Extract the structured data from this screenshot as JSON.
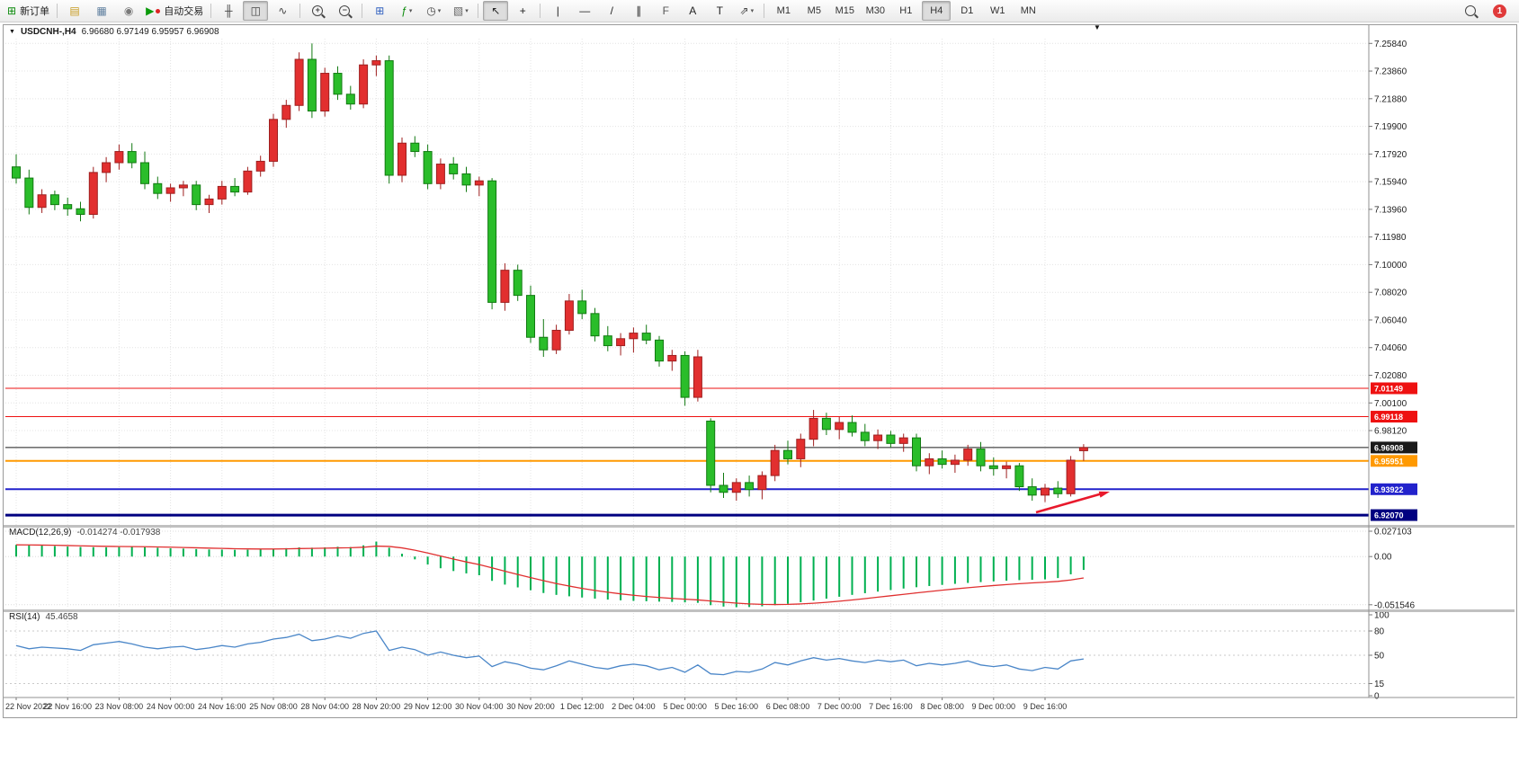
{
  "toolbar": {
    "notification_count": "1",
    "active_timeframe": "H4",
    "timeframes": [
      "M1",
      "M5",
      "M15",
      "M30",
      "H1",
      "H4",
      "D1",
      "W1",
      "MN"
    ],
    "groups": [
      {
        "buttons": [
          {
            "name": "new-order",
            "glyph": "⊞",
            "color": "#0a8a0a",
            "label": "新订单"
          }
        ]
      },
      {
        "buttons": [
          {
            "name": "metaeditor",
            "glyph": "▤",
            "color": "#c79a1e"
          },
          {
            "name": "print",
            "glyph": "▦",
            "color": "#5f7f9f"
          },
          {
            "name": "navigator",
            "glyph": "◉",
            "color": "#7a7a7a"
          },
          {
            "name": "auto-trading",
            "glyph": "▶",
            "color": "#0a9a0a",
            "label": "自动交易",
            "dot": "#dd2222"
          }
        ]
      },
      {
        "buttons": [
          {
            "name": "ohlc-bars",
            "glyph": "╫",
            "color": "#444444"
          },
          {
            "name": "candlesticks",
            "glyph": "◫",
            "color": "#444444",
            "active": true
          },
          {
            "name": "line-chart",
            "glyph": "∿",
            "color": "#444444"
          }
        ]
      },
      {
        "buttons": [
          {
            "name": "zoom-in",
            "icon": "mag",
            "sign": "+"
          },
          {
            "name": "zoom-out",
            "icon": "mag",
            "sign": "−"
          }
        ]
      },
      {
        "buttons": [
          {
            "name": "tile-windows",
            "glyph": "⊞",
            "color": "#2f5fbf"
          },
          {
            "name": "indicators",
            "glyph": "ƒ",
            "color": "#0a8a0a",
            "dropdown": true
          },
          {
            "name": "periods",
            "glyph": "◷",
            "color": "#444444",
            "dropdown": true
          },
          {
            "name": "templates",
            "glyph": "▧",
            "color": "#666666",
            "dropdown": true
          }
        ]
      },
      {
        "buttons": [
          {
            "name": "cursor",
            "glyph": "↖",
            "color": "#222222",
            "active": true
          },
          {
            "name": "crosshair",
            "glyph": "+",
            "color": "#222222"
          }
        ]
      },
      {
        "buttons": [
          {
            "name": "vertical-line",
            "glyph": "|",
            "color": "#222222"
          },
          {
            "name": "horizontal-line",
            "glyph": "—",
            "color": "#222222"
          },
          {
            "name": "trendline",
            "glyph": "/",
            "color": "#222222"
          },
          {
            "name": "equidistant-channel",
            "glyph": "∥",
            "color": "#222222"
          },
          {
            "name": "fibonacci-retracement",
            "glyph": "F",
            "color": "#555555"
          },
          {
            "name": "text",
            "glyph": "A",
            "color": "#222222"
          },
          {
            "name": "text-label",
            "glyph": "T",
            "color": "#222222"
          },
          {
            "name": "arrows",
            "glyph": "⇗",
            "color": "#444444",
            "dropdown": true
          }
        ]
      }
    ]
  },
  "icons": {
    "caret_down": "▼",
    "dropdown": "▾"
  },
  "chart_meta": {
    "symbol": "USDCNH-,H4",
    "ohlc": "6.96680 6.97149 6.95957 6.96908"
  },
  "indicators": {
    "macd": {
      "name": "MACD(12,26,9)",
      "values_text": "-0.014274 -0.017938",
      "axis_labels": [
        "0.027103",
        "0.00",
        "-0.051546"
      ]
    },
    "rsi": {
      "name": "RSI(14)",
      "value_text": "45.4658",
      "axis_labels": [
        "100",
        "80",
        "50",
        "15",
        "0"
      ],
      "levels": [
        80,
        50,
        15
      ]
    }
  },
  "chart_data": {
    "type": "candlestick",
    "symbol": "USDCNH",
    "timeframe": "H4",
    "price_axis_ticks": [
      "7.25840",
      "7.23860",
      "7.21880",
      "7.19900",
      "7.17920",
      "7.15940",
      "7.13960",
      "7.11980",
      "7.10000",
      "7.08020",
      "7.06040",
      "7.04060",
      "7.02080",
      "7.00100",
      "6.98120"
    ],
    "time_labels": [
      "22 Nov 2022",
      "22 Nov 16:00",
      "23 Nov 08:00",
      "24 Nov 00:00",
      "24 Nov 16:00",
      "25 Nov 08:00",
      "28 Nov 04:00",
      "28 Nov 20:00",
      "29 Nov 12:00",
      "30 Nov 04:00",
      "30 Nov 20:00",
      "1 Dec 12:00",
      "2 Dec 04:00",
      "5 Dec 00:00",
      "5 Dec 16:00",
      "6 Dec 08:00",
      "7 Dec 00:00",
      "7 Dec 16:00",
      "8 Dec 08:00",
      "9 Dec 00:00",
      "9 Dec 16:00"
    ],
    "horizontal_lines": [
      {
        "price": 7.01149,
        "label": "7.01149",
        "color": "#ee1111",
        "width": 1
      },
      {
        "price": 6.99118,
        "label": "6.99118",
        "color": "#ee1111",
        "width": 1
      },
      {
        "price": 6.96908,
        "label": "6.96908",
        "color": "#1a1a1a",
        "width": 1
      },
      {
        "price": 6.95951,
        "label": "6.95951",
        "color": "#ff9900",
        "width": 2
      },
      {
        "price": 6.93922,
        "label": "6.93922",
        "color": "#2222cc",
        "width": 2
      },
      {
        "price": 6.9207,
        "label": "6.92070",
        "color": "#000080",
        "width": 3
      }
    ],
    "candles": [
      [
        7.17,
        7.179,
        7.158,
        7.162
      ],
      [
        7.162,
        7.168,
        7.136,
        7.141
      ],
      [
        7.141,
        7.154,
        7.137,
        7.15
      ],
      [
        7.15,
        7.153,
        7.139,
        7.143
      ],
      [
        7.143,
        7.148,
        7.135,
        7.14
      ],
      [
        7.14,
        7.145,
        7.131,
        7.136
      ],
      [
        7.136,
        7.17,
        7.133,
        7.166
      ],
      [
        7.166,
        7.177,
        7.159,
        7.173
      ],
      [
        7.173,
        7.186,
        7.168,
        7.181
      ],
      [
        7.181,
        7.187,
        7.169,
        7.173
      ],
      [
        7.173,
        7.181,
        7.154,
        7.158
      ],
      [
        7.158,
        7.163,
        7.147,
        7.151
      ],
      [
        7.151,
        7.158,
        7.145,
        7.155
      ],
      [
        7.155,
        7.16,
        7.149,
        7.157
      ],
      [
        7.157,
        7.16,
        7.139,
        7.143
      ],
      [
        7.143,
        7.15,
        7.137,
        7.147
      ],
      [
        7.147,
        7.16,
        7.143,
        7.156
      ],
      [
        7.156,
        7.162,
        7.149,
        7.152
      ],
      [
        7.152,
        7.17,
        7.15,
        7.167
      ],
      [
        7.167,
        7.178,
        7.163,
        7.174
      ],
      [
        7.174,
        7.208,
        7.17,
        7.204
      ],
      [
        7.204,
        7.218,
        7.198,
        7.214
      ],
      [
        7.214,
        7.252,
        7.21,
        7.247
      ],
      [
        7.247,
        7.2584,
        7.205,
        7.21
      ],
      [
        7.21,
        7.241,
        7.206,
        7.237
      ],
      [
        7.237,
        7.242,
        7.218,
        7.222
      ],
      [
        7.222,
        7.228,
        7.211,
        7.215
      ],
      [
        7.215,
        7.247,
        7.212,
        7.243
      ],
      [
        7.243,
        7.2497,
        7.235,
        7.246
      ],
      [
        7.246,
        7.2497,
        7.158,
        7.164
      ],
      [
        7.164,
        7.191,
        7.159,
        7.187
      ],
      [
        7.187,
        7.192,
        7.177,
        7.181
      ],
      [
        7.181,
        7.186,
        7.154,
        7.158
      ],
      [
        7.158,
        7.176,
        7.154,
        7.172
      ],
      [
        7.172,
        7.177,
        7.161,
        7.165
      ],
      [
        7.165,
        7.17,
        7.152,
        7.157
      ],
      [
        7.157,
        7.163,
        7.149,
        7.16
      ],
      [
        7.16,
        7.162,
        7.068,
        7.073
      ],
      [
        7.073,
        7.101,
        7.067,
        7.096
      ],
      [
        7.096,
        7.1,
        7.074,
        7.078
      ],
      [
        7.078,
        7.085,
        7.044,
        7.048
      ],
      [
        7.048,
        7.061,
        7.034,
        7.039
      ],
      [
        7.039,
        7.057,
        7.036,
        7.053
      ],
      [
        7.053,
        7.079,
        7.05,
        7.074
      ],
      [
        7.074,
        7.082,
        7.061,
        7.065
      ],
      [
        7.065,
        7.069,
        7.045,
        7.049
      ],
      [
        7.049,
        7.056,
        7.038,
        7.042
      ],
      [
        7.042,
        7.051,
        7.035,
        7.047
      ],
      [
        7.047,
        7.055,
        7.037,
        7.051
      ],
      [
        7.051,
        7.057,
        7.043,
        7.046
      ],
      [
        7.046,
        7.049,
        7.027,
        7.031
      ],
      [
        7.031,
        7.039,
        7.024,
        7.035
      ],
      [
        7.035,
        7.038,
        6.999,
        7.005
      ],
      [
        7.005,
        7.039,
        7.002,
        7.034
      ],
      [
        6.988,
        6.99,
        6.937,
        6.942
      ],
      [
        6.942,
        6.951,
        6.933,
        6.937
      ],
      [
        6.937,
        6.947,
        6.931,
        6.944
      ],
      [
        6.944,
        6.949,
        6.934,
        6.939
      ],
      [
        6.939,
        6.952,
        6.932,
        6.949
      ],
      [
        6.949,
        6.971,
        6.945,
        6.967
      ],
      [
        6.967,
        6.974,
        6.957,
        6.961
      ],
      [
        6.961,
        6.979,
        6.955,
        6.975
      ],
      [
        6.975,
        6.996,
        6.97,
        6.99
      ],
      [
        6.99,
        6.994,
        6.978,
        6.982
      ],
      [
        6.982,
        6.991,
        6.975,
        6.987
      ],
      [
        6.987,
        6.992,
        6.977,
        6.98
      ],
      [
        6.98,
        6.986,
        6.97,
        6.974
      ],
      [
        6.974,
        6.982,
        6.968,
        6.978
      ],
      [
        6.978,
        6.981,
        6.969,
        6.972
      ],
      [
        6.972,
        6.979,
        6.966,
        6.976
      ],
      [
        6.976,
        6.979,
        6.952,
        6.956
      ],
      [
        6.956,
        6.965,
        6.95,
        6.961
      ],
      [
        6.961,
        6.967,
        6.954,
        6.957
      ],
      [
        6.957,
        6.964,
        6.951,
        6.96
      ],
      [
        6.96,
        6.971,
        6.956,
        6.968
      ],
      [
        6.968,
        6.973,
        6.952,
        6.956
      ],
      [
        6.956,
        6.962,
        6.949,
        6.954
      ],
      [
        6.954,
        6.959,
        6.947,
        6.956
      ],
      [
        6.956,
        6.958,
        6.938,
        6.941
      ],
      [
        6.941,
        6.947,
        6.931,
        6.935
      ],
      [
        6.935,
        6.943,
        6.93,
        6.94
      ],
      [
        6.94,
        6.945,
        6.933,
        6.936
      ],
      [
        6.936,
        6.963,
        6.934,
        6.96
      ],
      [
        6.9668,
        6.97149,
        6.95957,
        6.96908
      ]
    ],
    "macd_histogram": [
      0.0125,
      0.0121,
      0.0117,
      0.0112,
      0.0107,
      0.0103,
      0.01,
      0.0099,
      0.0101,
      0.0103,
      0.01,
      0.0094,
      0.0089,
      0.0085,
      0.008,
      0.0076,
      0.0074,
      0.0072,
      0.0073,
      0.0075,
      0.0082,
      0.009,
      0.0098,
      0.0095,
      0.0098,
      0.0105,
      0.0102,
      0.012,
      0.016,
      0.0095,
      0.003,
      -0.003,
      -0.0085,
      -0.0125,
      -0.0155,
      -0.018,
      -0.02,
      -0.026,
      -0.03,
      -0.033,
      -0.036,
      -0.039,
      -0.041,
      -0.0425,
      -0.0438,
      -0.045,
      -0.046,
      -0.0468,
      -0.0474,
      -0.0478,
      -0.0482,
      -0.0485,
      -0.049,
      -0.0495,
      -0.052,
      -0.0535,
      -0.0542,
      -0.054,
      -0.0532,
      -0.052,
      -0.0505,
      -0.0488,
      -0.047,
      -0.045,
      -0.043,
      -0.041,
      -0.0392,
      -0.0375,
      -0.0358,
      -0.0342,
      -0.0328,
      -0.0315,
      -0.0303,
      -0.0292,
      -0.0282,
      -0.0273,
      -0.0265,
      -0.0258,
      -0.0252,
      -0.0248,
      -0.0244,
      -0.023,
      -0.019,
      -0.0143
    ],
    "rsi_values": [
      62,
      58,
      60,
      59,
      58,
      56,
      63,
      65,
      67,
      64,
      60,
      58,
      60,
      61,
      57,
      59,
      62,
      60,
      64,
      66,
      70,
      72,
      76,
      68,
      70,
      74,
      71,
      77,
      80,
      56,
      60,
      57,
      50,
      54,
      50,
      47,
      49,
      36,
      42,
      39,
      34,
      32,
      37,
      43,
      39,
      35,
      33,
      37,
      39,
      37,
      32,
      35,
      29,
      38,
      27,
      26,
      30,
      29,
      33,
      41,
      38,
      43,
      47,
      44,
      46,
      43,
      41,
      44,
      42,
      44,
      37,
      40,
      38,
      40,
      43,
      38,
      36,
      38,
      33,
      31,
      35,
      33,
      43,
      45.4658
    ],
    "colors": {
      "up": "#e22f2f",
      "up_stroke": "#9e1f1f",
      "down": "#2abd2a",
      "down_stroke": "#127a12",
      "macd_hist": "#00b050",
      "macd_signal": "#e03030",
      "rsi_line": "#4a86c8",
      "grid": "#e4e4e4"
    },
    "annotation_arrow": {
      "from": [
        1148,
        542
      ],
      "to": [
        1230,
        519
      ],
      "color": "#e8192c"
    }
  }
}
